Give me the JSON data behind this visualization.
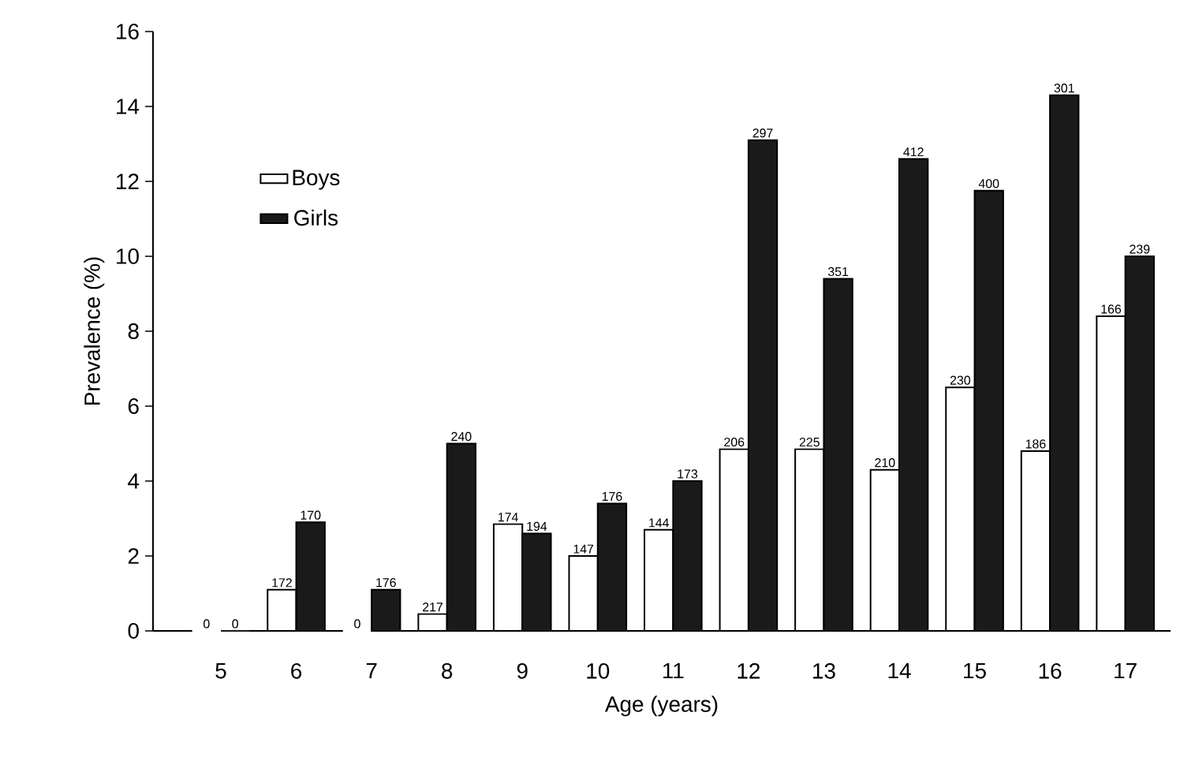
{
  "chart_data": {
    "type": "bar",
    "xlabel": "Age (years)",
    "ylabel": "Prevalence (%)",
    "categories": [
      "5",
      "6",
      "7",
      "8",
      "9",
      "10",
      "11",
      "12",
      "13",
      "14",
      "15",
      "16",
      "17"
    ],
    "series": [
      {
        "name": "Boys",
        "color": "#ffffff",
        "values": [
          0,
          1.1,
          0,
          0.45,
          2.85,
          2.0,
          2.7,
          4.85,
          4.85,
          4.3,
          6.5,
          4.8,
          8.4
        ]
      },
      {
        "name": "Girls",
        "color": "#1a1a1a",
        "values": [
          0,
          2.9,
          1.1,
          5.0,
          2.6,
          3.4,
          4.0,
          13.1,
          9.4,
          12.6,
          11.75,
          14.3,
          10.0
        ]
      }
    ],
    "annotations": [
      {
        "text": "0",
        "x": "5",
        "y": 0
      },
      {
        "text": "0",
        "x": "5",
        "y": 0
      },
      {
        "text": "172",
        "x": "6",
        "y": 1.1
      },
      {
        "text": "170",
        "x": "6",
        "y": 2.9
      },
      {
        "text": "0",
        "x": "7",
        "y": 0
      },
      {
        "text": "176",
        "x": "7",
        "y": 1.1
      },
      {
        "text": "217",
        "x": "8",
        "y": 0.45
      },
      {
        "text": "240",
        "x": "8",
        "y": 5.0
      },
      {
        "text": "174",
        "x": "9",
        "y": 2.85
      },
      {
        "text": "194",
        "x": "9",
        "y": 2.6
      },
      {
        "text": "147",
        "x": "10",
        "y": 2.0
      },
      {
        "text": "176",
        "x": "10",
        "y": 3.4
      },
      {
        "text": "144",
        "x": "11",
        "y": 2.7
      },
      {
        "text": "173",
        "x": "11",
        "y": 4.0
      },
      {
        "text": "206",
        "x": "12",
        "y": 4.85
      },
      {
        "text": "297",
        "x": "12",
        "y": 13.1
      },
      {
        "text": "225",
        "x": "13",
        "y": 4.85
      },
      {
        "text": "351",
        "x": "13",
        "y": 9.4
      },
      {
        "text": "210",
        "x": "14",
        "y": 4.3
      },
      {
        "text": "412",
        "x": "14",
        "y": 12.6
      },
      {
        "text": "230",
        "x": "15",
        "y": 6.5
      },
      {
        "text": "400",
        "x": "15",
        "y": 11.75
      },
      {
        "text": "186",
        "x": "16",
        "y": 4.8
      },
      {
        "text": "301",
        "x": "16",
        "y": 14.3
      },
      {
        "text": "166",
        "x": "17",
        "y": 8.4
      },
      {
        "text": "239",
        "x": "17",
        "y": 10.0
      }
    ],
    "ylim": [
      0,
      16
    ],
    "yticks": [
      0,
      2,
      4,
      6,
      8,
      10,
      12,
      14,
      16
    ],
    "legend": "top left",
    "grid": false
  }
}
